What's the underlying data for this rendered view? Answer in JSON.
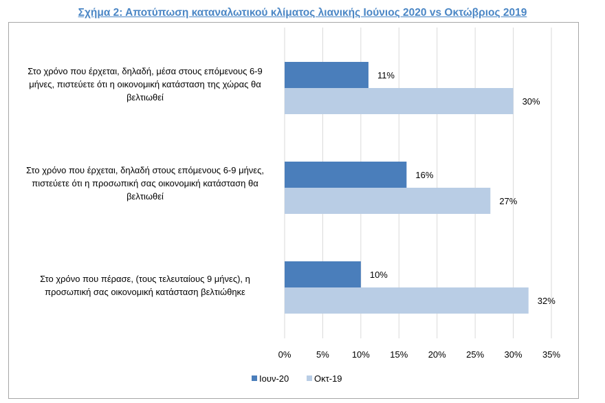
{
  "chart_data": {
    "type": "bar",
    "orientation": "horizontal",
    "title": "Σχήμα 2: Αποτύπωση καταναλωτικού κλίματος λιανικής Ιούνιος 2020 vs Οκτώβριος 2019",
    "categories": [
      "Στο χρόνο που έρχεται, δηλαδή, μέσα στους επόμενους 6-9 μήνες, πιστεύετε ότι η οικονομική κατάσταση της χώρας θα βελτιωθεί",
      "Στο χρόνο που έρχεται, δηλαδή στους επόμενους 6-9 μήνες, πιστεύετε ότι η προσωπική σας οικονομική κατάσταση θα βελτιωθεί",
      "Στο χρόνο που πέρασε, (τους τελευταίους 9 μήνες), η προσωπική σας οικονομική κατάσταση βελτιώθηκε"
    ],
    "series": [
      {
        "name": "Ιουν-20",
        "values": [
          11,
          16,
          10
        ],
        "labels": [
          "11%",
          "16%",
          "10%"
        ],
        "color": "#4a7ebb"
      },
      {
        "name": "Οκτ-19",
        "values": [
          30,
          27,
          32
        ],
        "labels": [
          "30%",
          "27%",
          "32%"
        ],
        "color": "#b9cde5"
      }
    ],
    "xlim": [
      0,
      35
    ],
    "xticks": [
      "0%",
      "5%",
      "10%",
      "15%",
      "20%",
      "25%",
      "30%",
      "35%"
    ],
    "grid": true,
    "legend": "bottom"
  }
}
